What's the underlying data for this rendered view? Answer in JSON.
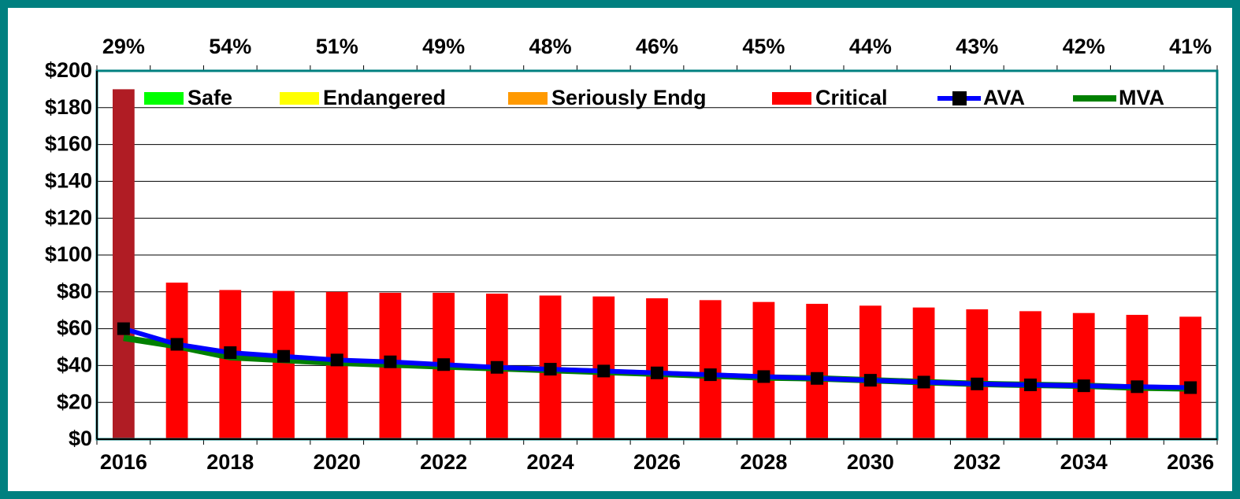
{
  "chart_data": {
    "type": "bar",
    "categories": [
      "2016",
      null,
      "2018",
      null,
      "2020",
      null,
      "2022",
      null,
      "2024",
      null,
      "2026",
      null,
      "2028",
      null,
      "2030",
      null,
      "2032",
      null,
      "2034",
      null,
      "2036"
    ],
    "top_labels": [
      "29%",
      null,
      "54%",
      null,
      "51%",
      null,
      "49%",
      null,
      "48%",
      null,
      "46%",
      null,
      "45%",
      null,
      "44%",
      null,
      "43%",
      null,
      "42%",
      null,
      "41%"
    ],
    "series": [
      {
        "name": "Safe",
        "kind": "bar",
        "color": "#00ff00",
        "values": [
          null,
          null,
          null,
          null,
          null,
          null,
          null,
          null,
          null,
          null,
          null,
          null,
          null,
          null,
          null,
          null,
          null,
          null,
          null,
          null,
          null
        ]
      },
      {
        "name": "Endangered",
        "kind": "bar",
        "color": "#ffff00",
        "values": [
          null,
          null,
          null,
          null,
          null,
          null,
          null,
          null,
          null,
          null,
          null,
          null,
          null,
          null,
          null,
          null,
          null,
          null,
          null,
          null,
          null
        ]
      },
      {
        "name": "Seriously Endg",
        "kind": "bar",
        "color": "#ff9900",
        "values": [
          null,
          null,
          null,
          null,
          null,
          null,
          null,
          null,
          null,
          null,
          null,
          null,
          null,
          null,
          null,
          null,
          null,
          null,
          null,
          null,
          null
        ]
      },
      {
        "name": "Critical",
        "kind": "bar",
        "color": "#ff0000",
        "colors": [
          "#b01c24",
          "#ff0000",
          "#ff0000",
          "#ff0000",
          "#ff0000",
          "#ff0000",
          "#ff0000",
          "#ff0000",
          "#ff0000",
          "#ff0000",
          "#ff0000",
          "#ff0000",
          "#ff0000",
          "#ff0000",
          "#ff0000",
          "#ff0000",
          "#ff0000",
          "#ff0000",
          "#ff0000",
          "#ff0000",
          "#ff0000"
        ],
        "values": [
          190,
          85,
          81,
          80.5,
          80,
          79.5,
          79.5,
          79,
          78,
          77.5,
          76.5,
          75.5,
          74.5,
          73.5,
          72.5,
          71.5,
          70.5,
          69.5,
          68.5,
          67.5,
          66.5
        ]
      },
      {
        "name": "AVA",
        "kind": "line",
        "color": "#0000ff",
        "marker_color": "#000000",
        "values": [
          60,
          51.5,
          47,
          45,
          43,
          42,
          40.5,
          39,
          38,
          37,
          36,
          35,
          34,
          33,
          32,
          31,
          30,
          29.5,
          29,
          28.5,
          28
        ]
      },
      {
        "name": "MVA",
        "kind": "line",
        "color": "#008000",
        "values": [
          55,
          50.5,
          44.5,
          43,
          41.5,
          40.5,
          39.5,
          38.5,
          37.5,
          36.5,
          35.5,
          34.5,
          33.5,
          33,
          32,
          31,
          30,
          29.5,
          29,
          28,
          27.5
        ]
      }
    ],
    "ylim": [
      0,
      200
    ],
    "yticks": [
      {
        "value": 0,
        "label": "$0"
      },
      {
        "value": 20,
        "label": "$20"
      },
      {
        "value": 40,
        "label": "$40"
      },
      {
        "value": 60,
        "label": "$60"
      },
      {
        "value": 80,
        "label": "$80"
      },
      {
        "value": 100,
        "label": "$100"
      },
      {
        "value": 120,
        "label": "$120"
      },
      {
        "value": 140,
        "label": "$140"
      },
      {
        "value": 160,
        "label": "$160"
      },
      {
        "value": 180,
        "label": "$180"
      },
      {
        "value": 200,
        "label": "$200"
      }
    ],
    "grid": true,
    "legend": "top"
  }
}
